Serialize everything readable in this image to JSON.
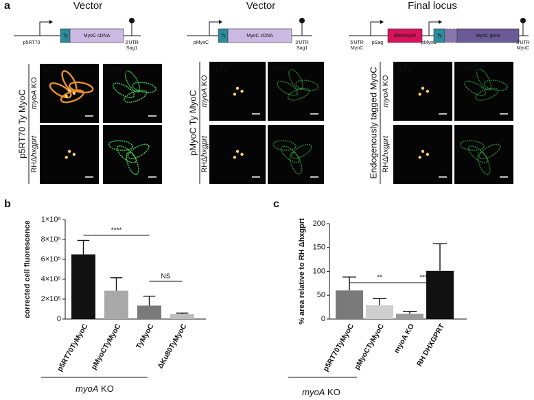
{
  "panel_a": {
    "label": "a",
    "columns": [
      {
        "title": "Vector",
        "diagram": [
          "p5RT70",
          "Ty",
          "MyoC cDNA",
          "3'UTR",
          "Sag1"
        ],
        "side_label": "p5RT70 Ty MyoC",
        "stains": [
          "αTy",
          "αIMC"
        ],
        "rows": [
          [
            {
              "text": "myoA",
              "italic": true
            },
            {
              "text": " KO"
            }
          ],
          [
            {
              "text": "RHΔ"
            },
            {
              "text": "hxgprt",
              "italic": true
            }
          ]
        ]
      },
      {
        "title": "Vector",
        "diagram": [
          "pMyoC",
          "Ty",
          "MyoC cDNA",
          "3'UTR",
          "Sag1"
        ],
        "side_label": "pMyoC Ty MyoC",
        "stains": [
          "αTy",
          "αIMC"
        ],
        "rows": [
          [
            {
              "text": "myoA",
              "italic": true
            },
            {
              "text": " KO"
            }
          ],
          [
            {
              "text": "RHΔ"
            },
            {
              "text": "hxgprt",
              "italic": true
            }
          ]
        ]
      },
      {
        "title": "Final locus",
        "diagram": [
          "5'UTR",
          "MyoC",
          "pSag",
          "Bleomycin",
          "pMyoC",
          "Ty",
          "MyoC gene",
          "3'UTR",
          "MyoC"
        ],
        "side_label": "Endogenously tagged MyoC",
        "stains": [
          "αTy",
          "αIMC"
        ],
        "rows": [
          [
            {
              "text": "myoA",
              "italic": true
            },
            {
              "text": " KO"
            }
          ],
          [
            {
              "text": "RHΔ"
            },
            {
              "text": "hxgprt",
              "italic": true
            }
          ]
        ]
      }
    ]
  },
  "chart_data": [
    {
      "type": "bar",
      "label": "b",
      "y_label": "corrected cell fluorescence",
      "categories": [
        "p5RT70TyMyoC",
        "pMyoCTyMyoC",
        "TyMyoC",
        "ΔKu80TyMyoC"
      ],
      "values": [
        650000,
        285000,
        135000,
        50000
      ],
      "errors": [
        140000,
        130000,
        95000,
        10000
      ],
      "colors": [
        "#111111",
        "#a9a9a9",
        "#7a7a7a",
        "#bdbdbd"
      ],
      "ylim": [
        0,
        1000000
      ],
      "yticks": [
        0,
        {
          "value": 200000,
          "label": "2×10⁵"
        },
        {
          "value": 400000,
          "label": "4×10⁵"
        },
        {
          "value": 600000,
          "label": "6×10⁵"
        },
        {
          "value": 800000,
          "label": "8×10⁵"
        },
        {
          "value": 1000000,
          "label": "1×10⁶"
        }
      ],
      "annotations": [
        "****",
        "NS"
      ],
      "group_label": [
        {
          "text": "myoA",
          "italic": true
        },
        {
          "text": " KO"
        }
      ]
    },
    {
      "type": "bar",
      "label": "c",
      "y_label": "% area relative to RH Δhxgprt",
      "categories": [
        "p5RT70TyMyoC",
        "pMyoCTyMyoC",
        "myoA KO",
        "RH DHXGPRT"
      ],
      "values": [
        60,
        29,
        11,
        101
      ],
      "errors": [
        28,
        14,
        5,
        57
      ],
      "colors": [
        "#7a7a7a",
        "#cfcfcf",
        "#9a9a9a",
        "#111111"
      ],
      "ylim": [
        0,
        200
      ],
      "yticks": [
        0,
        50,
        100,
        150,
        200
      ],
      "annotations": [
        "**",
        "****"
      ],
      "group_label": [
        {
          "text": "myoA",
          "italic": true
        },
        {
          "text": " KO"
        }
      ]
    }
  ]
}
